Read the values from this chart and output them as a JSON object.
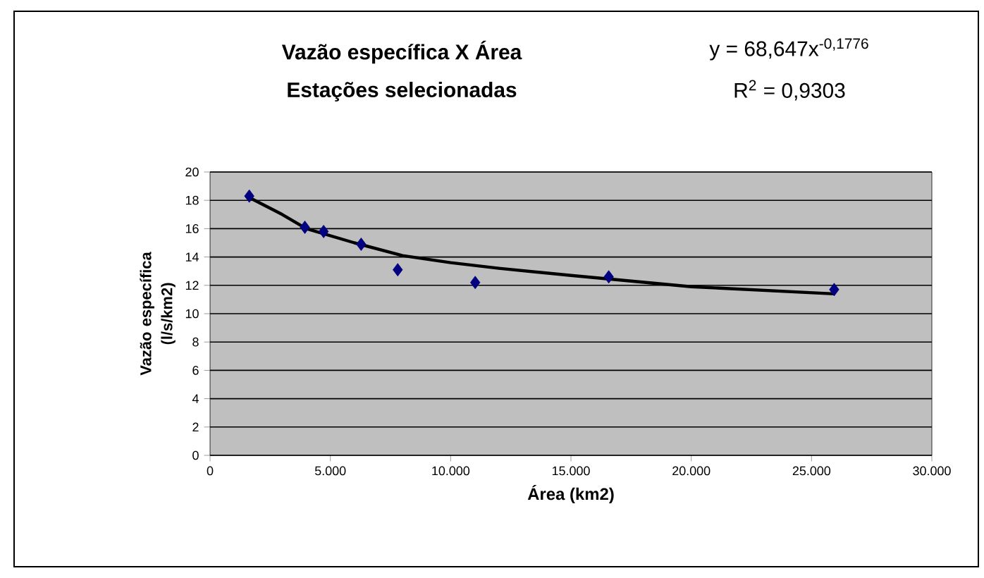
{
  "chart_data": {
    "type": "scatter",
    "title": "Vazão específica X Área",
    "subtitle": "Estações selecionadas",
    "xlabel": "Área (km2)",
    "ylabel": "Vazão específica (l/s/km2)",
    "annotations": [
      "y = 68,647x$^{-0,1776}$",
      "R$^{2}$ = 0,9303"
    ],
    "series": [
      {
        "color": "#000080",
        "marker": "diamond",
        "x": [
          1630,
          3940,
          4720,
          6280,
          7800,
          11020,
          16570,
          25940
        ],
        "values": [
          18.3,
          16.1,
          15.8,
          14.9,
          13.1,
          12.2,
          12.6,
          11.7
        ]
      },
      {
        "type": "line",
        "color": "#000000",
        "marker": "none",
        "line_style": "solid",
        "x": [
          1630,
          3000,
          4000,
          6000,
          8000,
          10000,
          12000,
          15000,
          20000,
          25940
        ],
        "values": [
          18.2,
          17.0,
          16.0,
          15.0,
          14.1,
          13.6,
          13.2,
          12.7,
          11.9,
          11.4
        ]
      }
    ],
    "xlim": [
      0,
      30000
    ],
    "ylim": [
      0,
      20
    ],
    "xticks": [
      0,
      {
        "value": 5000,
        "label": "5.000"
      },
      {
        "value": 10000,
        "label": "10.000"
      },
      {
        "value": 15000,
        "label": "15.000"
      },
      {
        "value": 20000,
        "label": "20.000"
      },
      {
        "value": 25000,
        "label": "25.000"
      },
      {
        "value": 30000,
        "label": "30.000"
      }
    ],
    "yticks": [
      0,
      2,
      4,
      6,
      8,
      10,
      12,
      14,
      16,
      18,
      20
    ],
    "grid": "y"
  }
}
